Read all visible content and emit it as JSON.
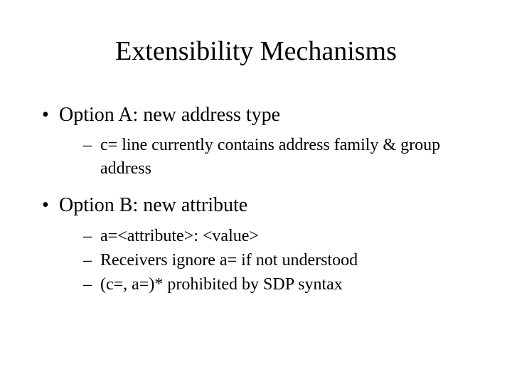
{
  "title": "Extensibility Mechanisms",
  "bullets": [
    {
      "text": "Option A: new address type",
      "subs": [
        "c= line currently contains address family & group address"
      ]
    },
    {
      "text": "Option B: new attribute",
      "subs": [
        "a=<attribute>: <value>",
        "Receivers ignore a= if not understood",
        "(c=, a=)* prohibited by SDP syntax"
      ]
    }
  ],
  "styling": {
    "title_fontsize": 38,
    "bullet_fontsize": 28,
    "sub_fontsize": 24,
    "font_family": "Times New Roman",
    "background_color": "#ffffff",
    "text_color": "#000000"
  }
}
